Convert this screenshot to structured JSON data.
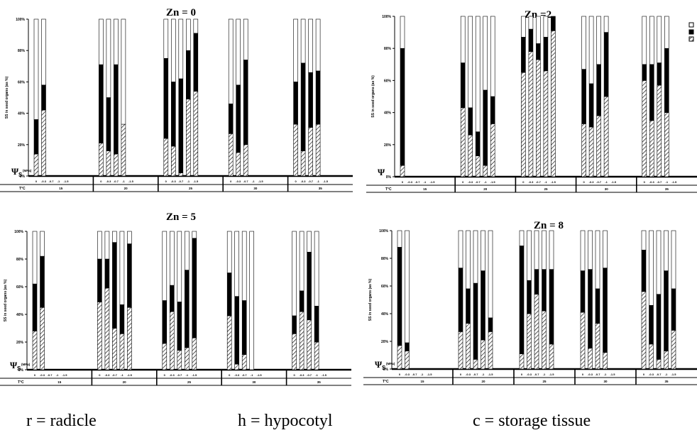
{
  "footer": {
    "r": "r = radicle",
    "h": "h = hypocotyl",
    "c": "c = storage tissue"
  },
  "colors": {
    "stack_bottom": "#ffffff",
    "stack_middle": "#000000",
    "stack_top": "#ffffff"
  },
  "chart_data": [
    {
      "type": "bar",
      "stacked": true,
      "title": "Zn = 0",
      "ylabel": "SS in seed organs (as %)",
      "ylim": [
        0,
        100
      ],
      "yticks": [
        "0%",
        "20%",
        "40%",
        "60%",
        "80%",
        "100%"
      ],
      "psi_label": "Ψ",
      "psi_sub": "S",
      "psi_unit": "(MPa)",
      "temp_label": "T°C",
      "psi_levels": [
        "0",
        "-0.3",
        "-0.7",
        "-1",
        "-1.5"
      ],
      "temperatures": [
        "15",
        "20",
        "25",
        "30",
        "35"
      ],
      "series": [
        {
          "name": "",
          "values": [
            [
              14,
              42,
              0,
              0,
              0
            ],
            [
              21,
              16,
              14,
              33,
              0
            ],
            [
              24,
              19,
              2,
              49,
              54
            ],
            [
              27,
              15,
              20,
              0,
              0
            ],
            [
              33,
              16,
              31,
              33,
              0
            ]
          ]
        },
        {
          "name": "",
          "values": [
            [
              22,
              16,
              0,
              0,
              0
            ],
            [
              50,
              34,
              57,
              0,
              0
            ],
            [
              51,
              41,
              60,
              31,
              37
            ],
            [
              19,
              43,
              54,
              0,
              0
            ],
            [
              27,
              56,
              35,
              34,
              0
            ]
          ]
        },
        {
          "name": "",
          "values": [
            [
              64,
              42,
              0,
              0,
              0
            ],
            [
              29,
              50,
              29,
              67,
              0
            ],
            [
              25,
              40,
              38,
              20,
              9
            ],
            [
              54,
              42,
              26,
              0,
              0
            ],
            [
              40,
              28,
              34,
              33,
              0
            ]
          ]
        }
      ]
    },
    {
      "type": "bar",
      "stacked": true,
      "title": "Zn =2",
      "ylabel": "SS in seed organs (as %)",
      "ylim": [
        0,
        100
      ],
      "yticks": [
        "0%",
        "20%",
        "40%",
        "60%",
        "80%",
        "100%"
      ],
      "psi_label": "Ψ",
      "psi_sub": "",
      "psi_unit": "",
      "temp_label": "T°C",
      "psi_levels": [
        "0",
        "-0.3",
        "-0.7",
        "-1",
        "-1.5"
      ],
      "temperatures": [
        "15",
        "20",
        "25",
        "30",
        "35"
      ],
      "series": [
        {
          "name": "",
          "values": [
            [
              7,
              0,
              0,
              0,
              0
            ],
            [
              43,
              26,
              13,
              7,
              33
            ],
            [
              65,
              78,
              73,
              66,
              91
            ],
            [
              33,
              31,
              38,
              50,
              0
            ],
            [
              60,
              35,
              57,
              40,
              0
            ]
          ]
        },
        {
          "name": "",
          "values": [
            [
              73,
              0,
              0,
              0,
              0
            ],
            [
              28,
              17,
              15,
              47,
              17
            ],
            [
              22,
              14,
              10,
              21,
              9
            ],
            [
              34,
              27,
              32,
              40,
              0
            ],
            [
              10,
              35,
              14,
              40,
              0
            ]
          ]
        },
        {
          "name": "",
          "values": [
            [
              20,
              0,
              0,
              0,
              0
            ],
            [
              29,
              57,
              72,
              46,
              50
            ],
            [
              13,
              8,
              17,
              13,
              0
            ],
            [
              33,
              42,
              30,
              10,
              0
            ],
            [
              30,
              30,
              29,
              20,
              0
            ]
          ]
        }
      ]
    },
    {
      "type": "bar",
      "stacked": true,
      "title": "Zn = 5",
      "ylabel": "SS in seed organs (as %)",
      "ylim": [
        0,
        100
      ],
      "yticks": [
        "0%",
        "20%",
        "40%",
        "60%",
        "80%",
        "100%"
      ],
      "psi_label": "Ψ",
      "psi_sub": "S",
      "psi_unit": "(MPa)",
      "temp_label": "T°C",
      "psi_levels": [
        "0",
        "-0.3",
        "-0.7",
        "-1",
        "-1.5"
      ],
      "temperatures": [
        "15",
        "20",
        "25",
        "30",
        "35"
      ],
      "series": [
        {
          "name": "",
          "values": [
            [
              28,
              45,
              0,
              0,
              0
            ],
            [
              49,
              59,
              30,
              26,
              45
            ],
            [
              19,
              42,
              14,
              16,
              23
            ],
            [
              39,
              4,
              11,
              0,
              0
            ],
            [
              26,
              42,
              36,
              20,
              0
            ]
          ]
        },
        {
          "name": "",
          "values": [
            [
              34,
              37,
              0,
              0,
              0
            ],
            [
              31,
              21,
              62,
              21,
              46
            ],
            [
              31,
              19,
              35,
              56,
              72
            ],
            [
              31,
              49,
              39,
              0,
              0
            ],
            [
              13,
              15,
              49,
              26,
              0
            ]
          ]
        },
        {
          "name": "",
          "values": [
            [
              38,
              18,
              0,
              0,
              0
            ],
            [
              20,
              20,
              8,
              53,
              9
            ],
            [
              50,
              39,
              51,
              28,
              5
            ],
            [
              30,
              47,
              50,
              100,
              0
            ],
            [
              61,
              43,
              15,
              54,
              0
            ]
          ]
        }
      ]
    },
    {
      "type": "bar",
      "stacked": true,
      "title": "Zn = 8",
      "ylabel": "SS in seed organs (as %)",
      "ylim": [
        0,
        100
      ],
      "yticks": [
        "0%",
        "20%",
        "40%",
        "60%",
        "80%",
        "100%"
      ],
      "psi_label": "Ψ",
      "psi_sub": "S",
      "psi_unit": "(MPa)",
      "temp_label": "T°C",
      "psi_levels": [
        "0",
        "-0.3",
        "-0.7",
        "-1",
        "-1.5"
      ],
      "temperatures": [
        "15",
        "20",
        "25",
        "30",
        "35"
      ],
      "series": [
        {
          "name": "",
          "values": [
            [
              17,
              13,
              0,
              0,
              0
            ],
            [
              27,
              33,
              7,
              21,
              27
            ],
            [
              11,
              40,
              54,
              42,
              18
            ],
            [
              41,
              15,
              33,
              12,
              0
            ],
            [
              56,
              18,
              7,
              13,
              28
            ]
          ]
        },
        {
          "name": "",
          "values": [
            [
              71,
              6,
              0,
              0,
              0
            ],
            [
              46,
              25,
              55,
              50,
              10
            ],
            [
              78,
              24,
              18,
              30,
              54
            ],
            [
              30,
              57,
              25,
              61,
              0
            ],
            [
              30,
              28,
              47,
              58,
              30
            ]
          ]
        },
        {
          "name": "",
          "values": [
            [
              12,
              81,
              0,
              0,
              0
            ],
            [
              27,
              42,
              38,
              29,
              63
            ],
            [
              11,
              36,
              28,
              28,
              28
            ],
            [
              29,
              28,
              42,
              27,
              0
            ],
            [
              14,
              54,
              46,
              29,
              42
            ]
          ]
        }
      ]
    }
  ]
}
